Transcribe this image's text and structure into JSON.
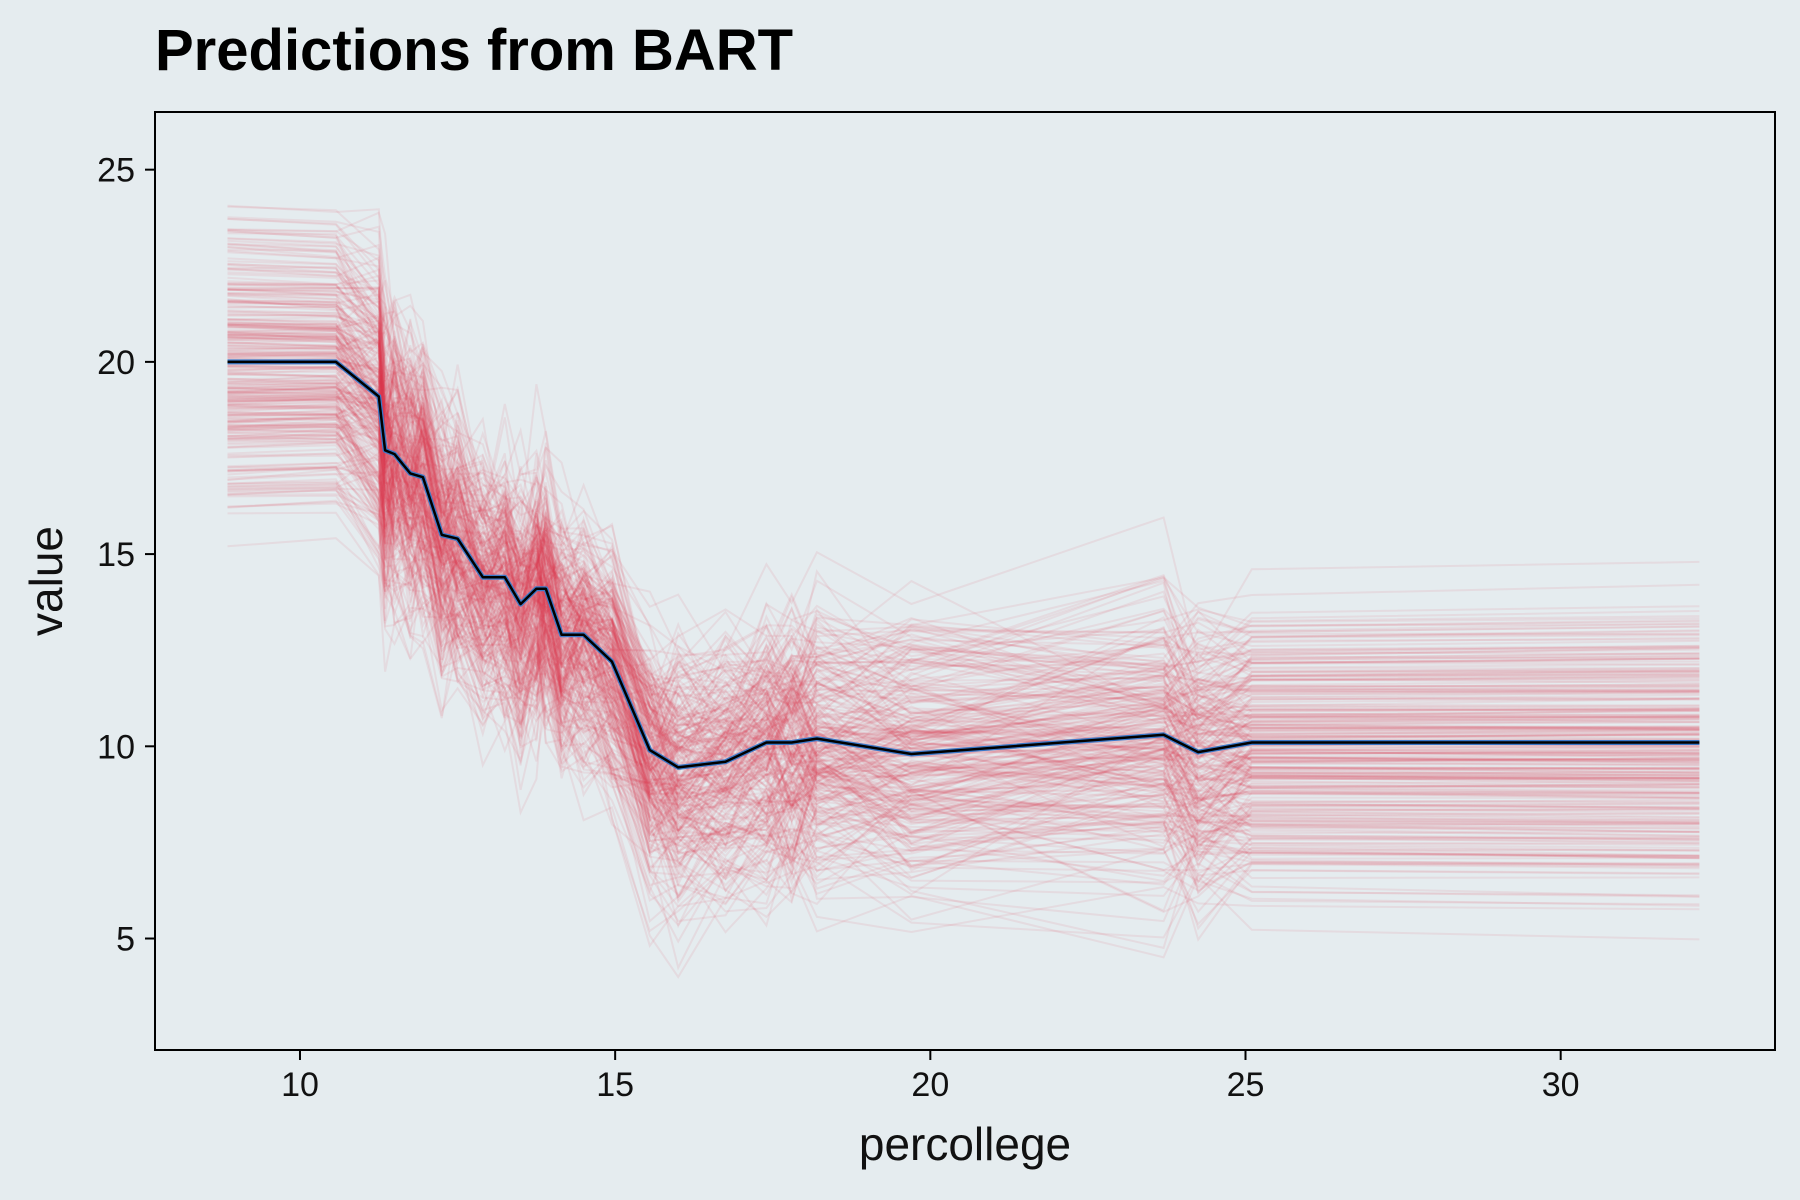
{
  "chart_data": {
    "type": "line",
    "title": "Predictions from BART",
    "xlabel": "percollege",
    "ylabel": "value",
    "xlim": [
      7.7,
      33.4
    ],
    "ylim": [
      2.1,
      26.5
    ],
    "xticks": [
      10,
      15,
      20,
      25,
      30
    ],
    "yticks": [
      5,
      10,
      15,
      20,
      25
    ],
    "grid": false,
    "legend": "none",
    "series": [
      {
        "role": "average",
        "x": [
          8.85,
          10.57,
          11.25,
          11.35,
          11.5,
          11.75,
          11.95,
          12.25,
          12.5,
          12.9,
          13.25,
          13.5,
          13.75,
          13.9,
          14.15,
          14.5,
          14.95,
          15.55,
          16.0,
          16.75,
          17.4,
          17.8,
          18.2,
          19.7,
          23.7,
          24.25,
          25.1,
          32.2
        ],
        "y": [
          20.0,
          20.0,
          19.1,
          17.7,
          17.6,
          17.1,
          17.0,
          15.5,
          15.4,
          14.4,
          14.4,
          13.7,
          14.1,
          14.1,
          12.9,
          12.9,
          12.2,
          9.9,
          9.45,
          9.6,
          10.1,
          10.1,
          10.2,
          9.8,
          10.3,
          9.85,
          10.1,
          10.1
        ]
      }
    ],
    "ice_curves": {
      "count": 300,
      "plateau_start_range": [
        14.2,
        25.4
      ],
      "plateau_end_range": [
        4.2,
        14.8
      ]
    },
    "colors": {
      "ice_lines": "#dc3550",
      "average_line": "#000000",
      "average_halo": "#3a78c9",
      "background": "#e5ecef",
      "axis": "#000000"
    }
  }
}
